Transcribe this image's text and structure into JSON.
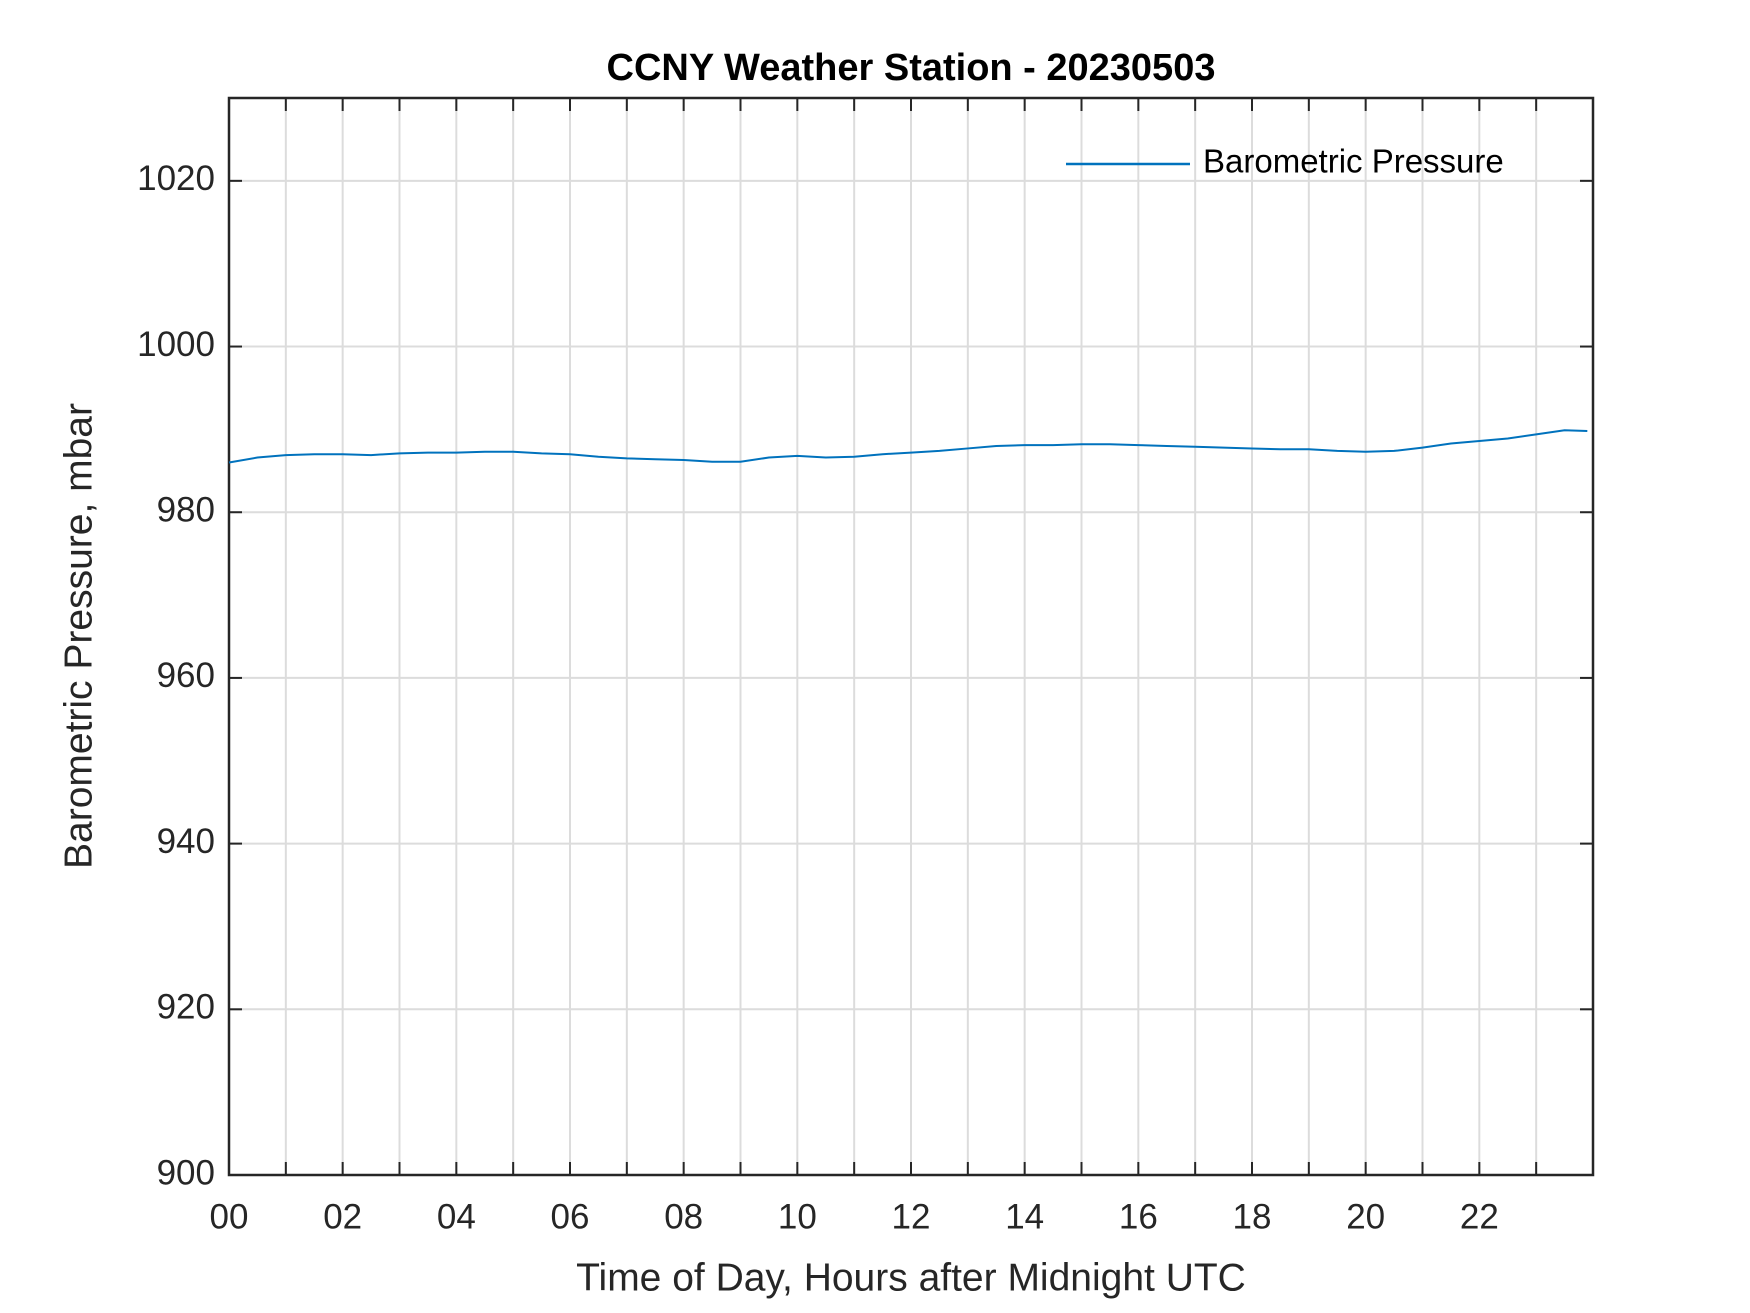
{
  "chart_data": {
    "type": "line",
    "title": "CCNY Weather Station - 20230503",
    "x_label": "Time of Day, Hours after Midnight UTC",
    "y_label": "Barometric Pressure, mbar",
    "x": [
      0,
      0.5,
      1,
      1.5,
      2,
      2.5,
      3,
      3.5,
      4,
      4.5,
      5,
      5.5,
      6,
      6.5,
      7,
      7.5,
      8,
      8.5,
      9,
      9.5,
      10,
      10.5,
      11,
      11.5,
      12,
      12.5,
      13,
      13.5,
      14,
      14.5,
      15,
      15.5,
      16,
      16.5,
      17,
      17.5,
      18,
      18.5,
      19,
      19.5,
      20,
      20.5,
      21,
      21.5,
      22,
      22.5,
      23,
      23.5,
      23.9
    ],
    "series": [
      {
        "name": "Barometric Pressure",
        "color": "#0072bd",
        "values": [
          986.0,
          986.6,
          986.9,
          987.0,
          987.0,
          986.9,
          987.1,
          987.2,
          987.2,
          987.3,
          987.3,
          987.1,
          987.0,
          986.7,
          986.5,
          986.4,
          986.3,
          986.1,
          986.1,
          986.6,
          986.8,
          986.6,
          986.7,
          987.0,
          987.2,
          987.4,
          987.7,
          988.0,
          988.1,
          988.1,
          988.2,
          988.2,
          988.1,
          988.0,
          987.9,
          987.8,
          987.7,
          987.6,
          987.6,
          987.4,
          987.3,
          987.4,
          987.8,
          988.3,
          988.6,
          988.9,
          989.4,
          989.9,
          989.8
        ]
      }
    ],
    "xlim": [
      0,
      24
    ],
    "xticks": [
      {
        "value": 0,
        "label": "00"
      },
      {
        "value": 2,
        "label": "02"
      },
      {
        "value": 4,
        "label": "04"
      },
      {
        "value": 6,
        "label": "06"
      },
      {
        "value": 8,
        "label": "08"
      },
      10,
      12,
      14,
      16,
      18,
      20,
      22
    ],
    "xminorticks": [
      1,
      3,
      5,
      7,
      9,
      11,
      13,
      15,
      17,
      19,
      21,
      23
    ],
    "ylim": [
      900,
      1030
    ],
    "yticks": [
      900,
      920,
      940,
      960,
      980,
      1000,
      1020
    ],
    "grid": true,
    "legend": "upper right"
  }
}
